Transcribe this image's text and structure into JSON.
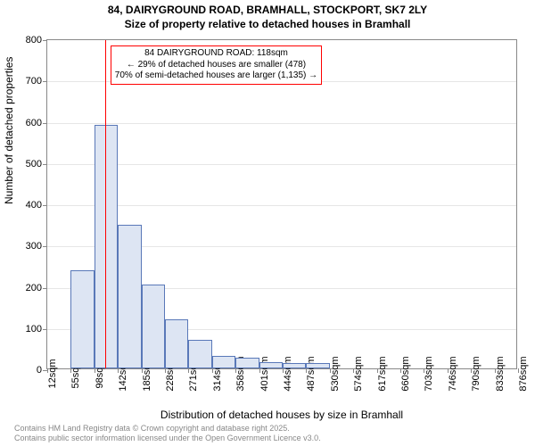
{
  "title_line1": "84, DAIRYGROUND ROAD, BRAMHALL, STOCKPORT, SK7 2LY",
  "title_line2": "Size of property relative to detached houses in Bramhall",
  "y_axis_title": "Number of detached properties",
  "x_axis_title": "Distribution of detached houses by size in Bramhall",
  "footer_line1": "Contains HM Land Registry data © Crown copyright and database right 2025.",
  "footer_line2": "Contains public sector information licensed under the Open Government Licence v3.0.",
  "chart": {
    "type": "histogram",
    "ylim": [
      0,
      800
    ],
    "ytick_step": 100,
    "y_ticks": [
      0,
      100,
      200,
      300,
      400,
      500,
      600,
      700,
      800
    ],
    "x_labels": [
      "12sqm",
      "55sqm",
      "98sqm",
      "142sqm",
      "185sqm",
      "228sqm",
      "271sqm",
      "314sqm",
      "358sqm",
      "401sqm",
      "444sqm",
      "487sqm",
      "530sqm",
      "574sqm",
      "617sqm",
      "660sqm",
      "703sqm",
      "746sqm",
      "790sqm",
      "833sqm",
      "876sqm"
    ],
    "values": [
      0,
      237,
      590,
      348,
      204,
      120,
      70,
      30,
      25,
      15,
      12,
      14,
      0,
      0,
      0,
      0,
      0,
      0,
      0,
      0
    ],
    "bar_fill": "#dde5f3",
    "bar_stroke": "#5978b8",
    "grid_color": "#e6e6e6",
    "axis_color": "#888888",
    "background_color": "#ffffff",
    "refline_x_label": "118sqm",
    "refline_color": "#ff0000",
    "annotation": {
      "line1": "84 DAIRYGROUND ROAD: 118sqm",
      "line2": "← 29% of detached houses are smaller (478)",
      "line3": "70% of semi-detached houses are larger (1,135) →",
      "border_color": "#ff0000"
    }
  }
}
